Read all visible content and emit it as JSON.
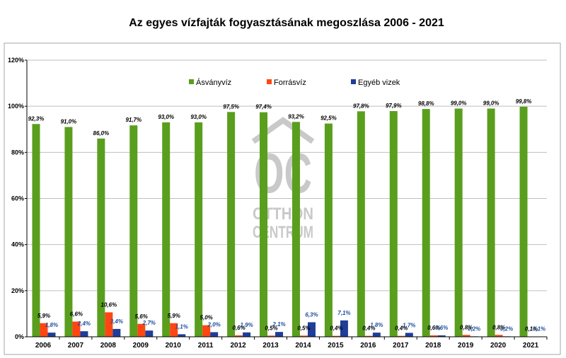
{
  "chart_data": {
    "type": "bar",
    "title": "Az egyes vízfajták fogyasztásának megoszlása 2006 - 2021",
    "categories": [
      "2006",
      "2007",
      "2008",
      "2009",
      "2010",
      "2011",
      "2012",
      "2013",
      "2014",
      "2015",
      "2016",
      "2017",
      "2018",
      "2019",
      "2020",
      "2021"
    ],
    "ylim": [
      0,
      120
    ],
    "y_ticks": [
      "0%",
      "20%",
      "40%",
      "60%",
      "80%",
      "100%",
      "120%"
    ],
    "grid": "horizontal",
    "legend_position": "top-center",
    "series": [
      {
        "name": "Ásványvíz",
        "color": "#5a9e1e",
        "values": [
          92.3,
          91.0,
          86.0,
          91.7,
          93.0,
          93.0,
          97.5,
          97.4,
          93.2,
          92.5,
          97.8,
          97.9,
          98.8,
          99.0,
          99.0,
          99.8
        ],
        "labels": [
          "92,3%",
          "91,0%",
          "86,0%",
          "91,7%",
          "93,0%",
          "93,0%",
          "97,5%",
          "97,4%",
          "93,2%",
          "92,5%",
          "97,8%",
          "97,9%",
          "98,8%",
          "99,0%",
          "99,0%",
          "99,8%"
        ]
      },
      {
        "name": "Forrásvíz",
        "color": "#ff4612",
        "values": [
          5.9,
          6.6,
          10.6,
          5.6,
          5.9,
          5.0,
          0.6,
          0.5,
          0.5,
          0.4,
          0.4,
          0.4,
          0.6,
          0.8,
          0.8,
          0.1
        ],
        "labels": [
          "5,9%",
          "6,6%",
          "10,6%",
          "5,6%",
          "5,9%",
          "5,0%",
          "0,6%",
          "0,5%",
          "0,5%",
          "0,4%",
          "0,4%",
          "0,4%",
          "0,6%",
          "0,8%",
          "0,8%",
          "0,1%"
        ]
      },
      {
        "name": "Egyéb vizek",
        "color": "#1f3d99",
        "values": [
          1.8,
          2.4,
          3.4,
          2.7,
          1.1,
          2.0,
          1.9,
          2.1,
          6.3,
          7.1,
          1.8,
          1.7,
          0.6,
          0.2,
          0.2,
          0.1
        ],
        "labels": [
          "1,8%",
          "2,4%",
          "3,4%",
          "2,7%",
          "1,1%",
          "2,0%",
          "1,9%",
          "2,1%",
          "6,3%",
          "7,1%",
          "1,8%",
          "1,7%",
          "0,6%",
          "0,2%",
          "0,2%",
          "0,1%"
        ]
      }
    ]
  },
  "watermark": {
    "logo": "OC",
    "line1": "OTTHON",
    "line2": "CENTRUM"
  }
}
